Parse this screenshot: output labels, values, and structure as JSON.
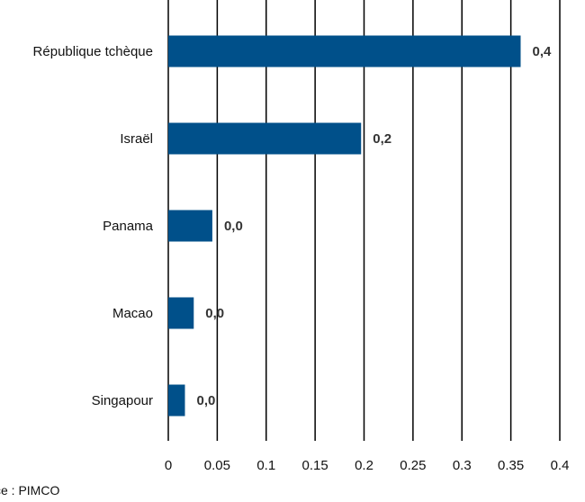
{
  "chart_data": {
    "type": "bar",
    "orientation": "horizontal",
    "categories": [
      "République tchèque",
      "Israël",
      "Panama",
      "Macao",
      "Singapour"
    ],
    "values": [
      0.36,
      0.197,
      0.045,
      0.026,
      0.017
    ],
    "data_labels": [
      "0,4",
      "0,2",
      "0,0",
      "0,0",
      "0,0"
    ],
    "xlim": [
      0,
      0.4
    ],
    "xticks": [
      "0",
      "0.05",
      "0.1",
      "0.15",
      "0.2",
      "0.25",
      "0.3",
      "0.35",
      "0.4"
    ],
    "grid": "vertical",
    "bar_color": "#00508A",
    "gridline_color": "#000000"
  },
  "source_text": "ce : PIMCO"
}
